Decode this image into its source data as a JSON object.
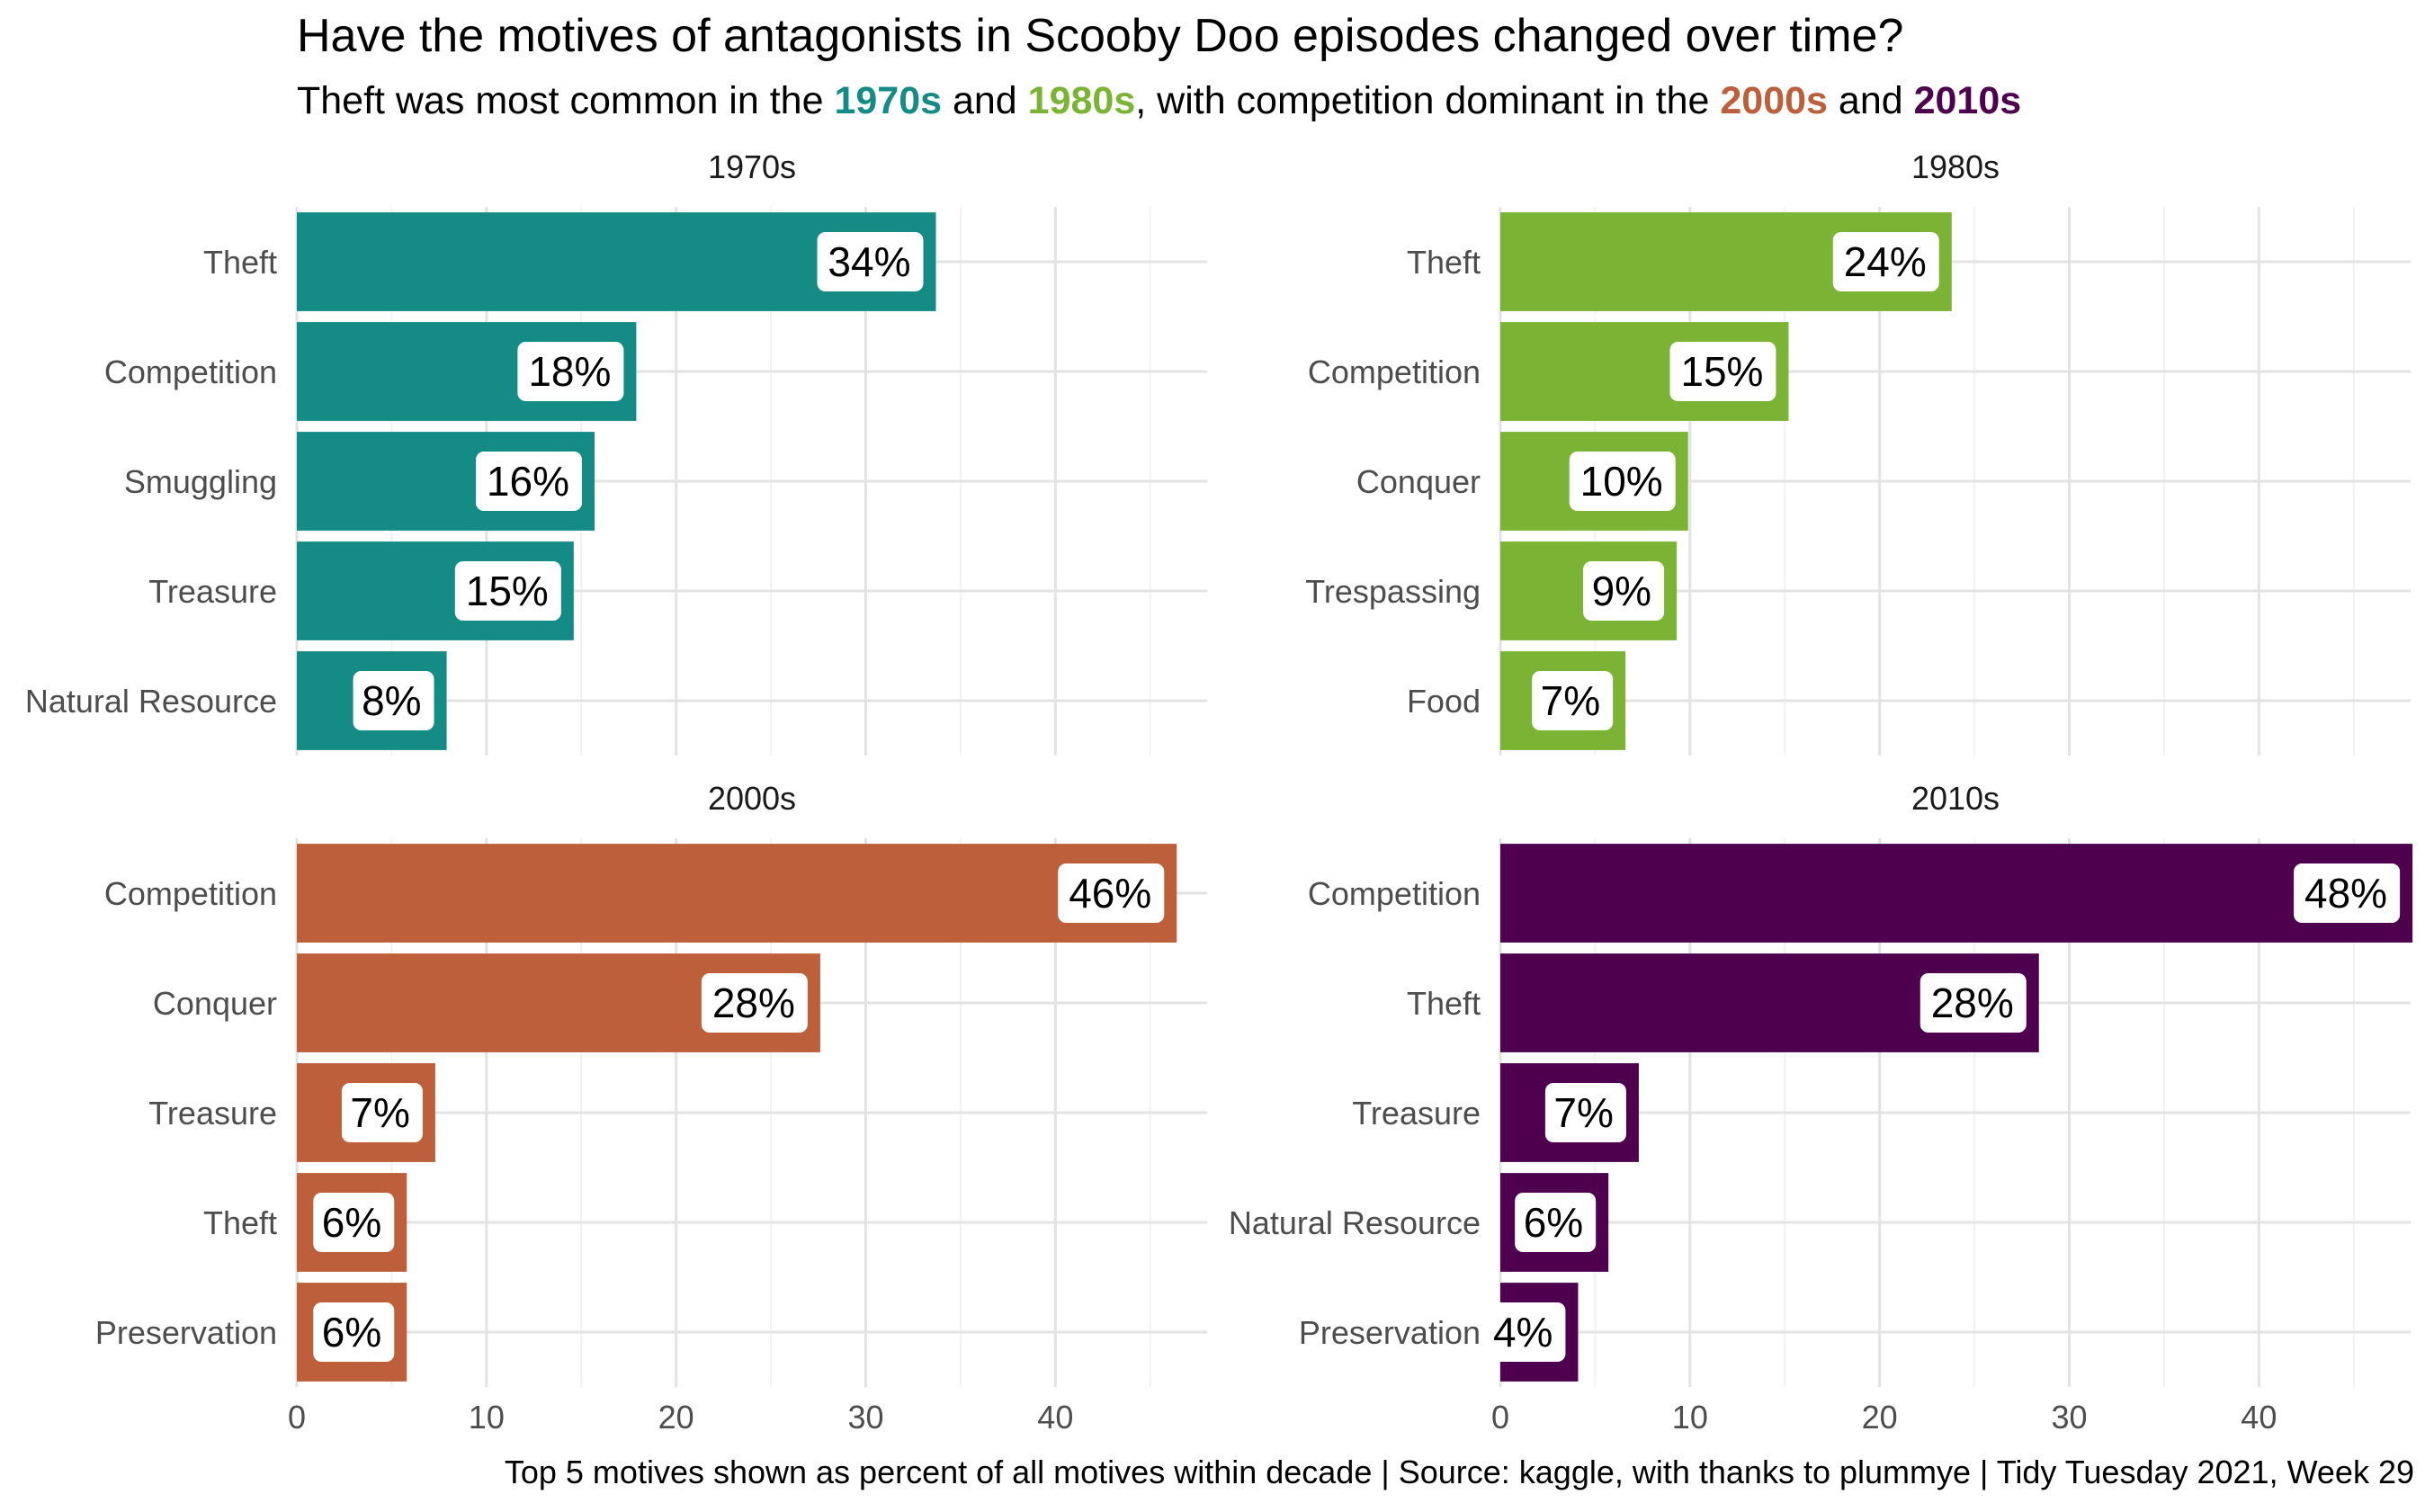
{
  "title": "Have the motives of antagonists in Scooby Doo episodes changed over time?",
  "subtitle": {
    "pre": "Theft was most common in the ",
    "d1": "1970s",
    "and1": " and ",
    "d2": "1980s",
    "mid": ", with competition dominant in the ",
    "d3": "2000s",
    "and2": " and ",
    "d4": "2010s"
  },
  "caption": "Top 5 motives shown as percent of all motives within decade | Source: kaggle, with thanks to plummye | Tidy Tuesday 2021, Week 29",
  "colors": {
    "1970s": "#148C85",
    "1980s": "#7BB334",
    "2000s": "#BC5F3A",
    "2010s": "#4E004F",
    "grid_major": "#E3E3E3",
    "grid_minor": "#F2F2F2",
    "label_bg": "#FFFFFF",
    "axis_text": "#4D4D4D"
  },
  "chart_data": {
    "type": "bar",
    "orientation": "horizontal",
    "facets": [
      "1970s",
      "1980s",
      "2000s",
      "2010s"
    ],
    "xlim": [
      0,
      48
    ],
    "xticks": [
      0,
      10,
      20,
      30,
      40
    ],
    "grid": true,
    "legend": "none",
    "panels": [
      {
        "name": "1970s",
        "categories": [
          "Theft",
          "Competition",
          "Smuggling",
          "Treasure",
          "Natural Resource"
        ],
        "values": [
          33.7,
          17.9,
          15.7,
          14.6,
          7.9
        ],
        "labels": [
          "34%",
          "18%",
          "16%",
          "15%",
          "8%"
        ]
      },
      {
        "name": "1980s",
        "categories": [
          "Theft",
          "Competition",
          "Conquer",
          "Trespassing",
          "Food"
        ],
        "values": [
          23.8,
          15.2,
          9.9,
          9.3,
          6.6
        ],
        "labels": [
          "24%",
          "15%",
          "10%",
          "9%",
          "7%"
        ]
      },
      {
        "name": "2000s",
        "categories": [
          "Competition",
          "Conquer",
          "Treasure",
          "Theft",
          "Preservation"
        ],
        "values": [
          46.4,
          27.6,
          7.3,
          5.8,
          5.8
        ],
        "labels": [
          "46%",
          "28%",
          "7%",
          "6%",
          "6%"
        ]
      },
      {
        "name": "2010s",
        "categories": [
          "Competition",
          "Theft",
          "Treasure",
          "Natural Resource",
          "Preservation"
        ],
        "values": [
          48.1,
          28.4,
          7.3,
          5.7,
          4.1
        ],
        "labels": [
          "48%",
          "28%",
          "7%",
          "6%",
          "4%"
        ]
      }
    ]
  }
}
